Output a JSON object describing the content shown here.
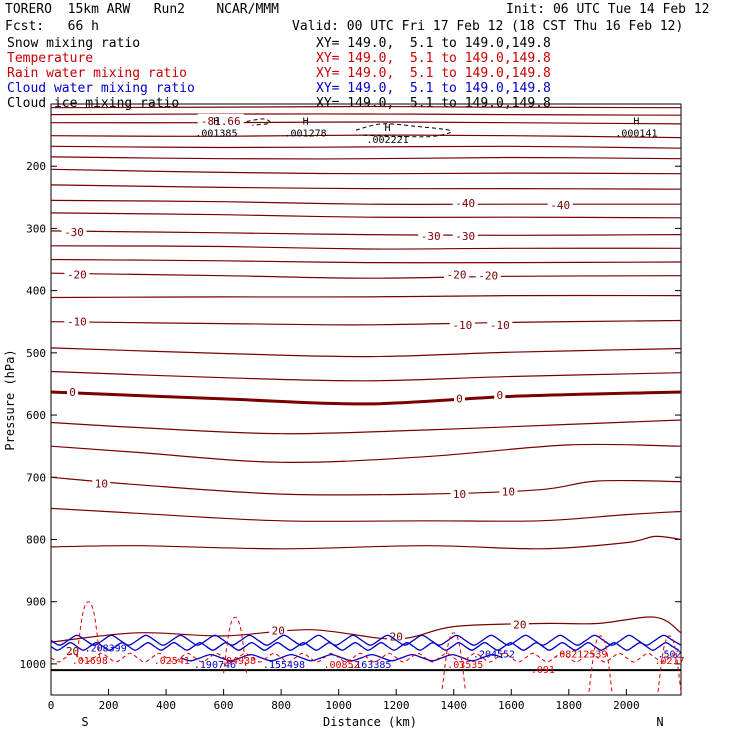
{
  "header": {
    "model": "TORERO  15km ARW   Run2    NCAR/MMM",
    "init": "Init: 06 UTC Tue 14 Feb 12",
    "fcst": "Fcst:   66 h",
    "valid": "Valid: 00 UTC Fri 17 Feb 12 (18 CST Thu 16 Feb 12)"
  },
  "fields": [
    {
      "name": "Snow mixing ratio",
      "xy": "XY= 149.0,  5.1 to 149.0,149.8",
      "color": "#000000"
    },
    {
      "name": "Temperature",
      "xy": "XY= 149.0,  5.1 to 149.0,149.8",
      "color": "#c80000"
    },
    {
      "name": "Rain water mixing ratio",
      "xy": "XY= 149.0,  5.1 to 149.0,149.8",
      "color": "#c80000"
    },
    {
      "name": "Cloud water mixing ratio",
      "xy": "XY= 149.0,  5.1 to 149.0,149.8",
      "color": "#0000c8"
    },
    {
      "name": "Cloud ice mixing ratio",
      "xy": "XY= 149.0,  5.1 to 149.0,149.8",
      "color": "#000000"
    }
  ],
  "chart_data": {
    "type": "line",
    "xlabel": "Distance (km)",
    "ylabel": "Pressure (hPa)",
    "xlim": [
      0,
      2190
    ],
    "ylim": [
      1050,
      100
    ],
    "x_ticks": [
      0,
      200,
      400,
      600,
      800,
      1000,
      1200,
      1400,
      1600,
      1800,
      2000
    ],
    "y_ticks": [
      200,
      300,
      400,
      500,
      600,
      700,
      800,
      900,
      1000
    ],
    "end_labels": {
      "left": "S",
      "right": "N"
    },
    "colors": {
      "temperature": "#7a0000",
      "cloud_water": "#0000c8",
      "rain": "#dc0000",
      "ice": "#000000"
    },
    "temperature_isotherms": [
      {
        "x": [
          0,
          600,
          1100,
          1500,
          2190
        ],
        "y": [
          106,
          105,
          104,
          105,
          106
        ]
      },
      {
        "x": [
          0,
          600,
          1100,
          1600,
          2190
        ],
        "y": [
          117,
          116,
          116,
          117,
          118
        ]
      },
      {
        "x": [
          0,
          600,
          1100,
          1600,
          2190
        ],
        "y": [
          130,
          130,
          129,
          130,
          132
        ]
      },
      {
        "x": [
          0,
          600,
          1100,
          1600,
          2190
        ],
        "y": [
          151,
          152,
          150,
          151,
          154
        ]
      },
      {
        "x": [
          0,
          600,
          1100,
          1600,
          2190
        ],
        "y": [
          168,
          170,
          169,
          168,
          171
        ]
      },
      {
        "x": [
          0,
          600,
          1100,
          1600,
          2190
        ],
        "y": [
          185,
          188,
          188,
          186,
          188
        ]
      },
      {
        "x": [
          0,
          600,
          1100,
          1600,
          2190
        ],
        "y": [
          205,
          210,
          212,
          211,
          212
        ]
      },
      {
        "x": [
          0,
          600,
          1100,
          1600,
          2190
        ],
        "y": [
          230,
          234,
          236,
          236,
          237
        ]
      },
      {
        "x": [
          0,
          600,
          1100,
          1600,
          2190
        ],
        "y": [
          255,
          257,
          261,
          261,
          261
        ]
      },
      {
        "x": [
          0,
          600,
          1100,
          1600,
          2190
        ],
        "y": [
          275,
          278,
          282,
          282,
          283
        ]
      },
      {
        "x": [
          0,
          600,
          1100,
          1600,
          2190
        ],
        "y": [
          304,
          307,
          310,
          311,
          310
        ]
      },
      {
        "x": [
          0,
          600,
          1100,
          1600,
          2190
        ],
        "y": [
          328,
          329,
          333,
          332,
          332
        ]
      },
      {
        "x": [
          0,
          600,
          1100,
          1600,
          2190
        ],
        "y": [
          350,
          352,
          355,
          355,
          354
        ]
      },
      {
        "x": [
          0,
          600,
          1100,
          1600,
          2190
        ],
        "y": [
          372,
          376,
          380,
          377,
          376
        ]
      },
      {
        "x": [
          0,
          600,
          1100,
          1600,
          2190
        ],
        "y": [
          411,
          410,
          410,
          408,
          408
        ]
      },
      {
        "x": [
          0,
          600,
          1100,
          1600,
          2190
        ],
        "y": [
          450,
          453,
          455,
          451,
          448
        ]
      },
      {
        "x": [
          0,
          600,
          1100,
          1600,
          2190
        ],
        "y": [
          492,
          501,
          506,
          499,
          493
        ]
      },
      {
        "x": [
          0,
          600,
          1100,
          1600,
          2190
        ],
        "y": [
          530,
          540,
          545,
          538,
          532
        ]
      },
      {
        "x": [
          0,
          600,
          1100,
          1600,
          2190
        ],
        "y": [
          563,
          574,
          582,
          570,
          563
        ],
        "bold": true
      },
      {
        "x": [
          0,
          300,
          800,
          1300,
          1800,
          2190
        ],
        "y": [
          612,
          620,
          630,
          624,
          615,
          608
        ]
      },
      {
        "x": [
          0,
          300,
          800,
          1300,
          1800,
          2190
        ],
        "y": [
          650,
          660,
          676,
          667,
          648,
          650
        ]
      },
      {
        "x": [
          0,
          300,
          800,
          1300,
          1700,
          1900,
          2190
        ],
        "y": [
          700,
          712,
          727,
          727,
          720,
          706,
          707
        ]
      },
      {
        "x": [
          0,
          300,
          800,
          1300,
          1700,
          2000,
          2190
        ],
        "y": [
          750,
          758,
          770,
          770,
          770,
          760,
          755
        ]
      },
      {
        "x": [
          0,
          300,
          800,
          1300,
          1700,
          2000,
          2100,
          2190
        ],
        "y": [
          812,
          810,
          815,
          810,
          815,
          805,
          795,
          800
        ]
      },
      {
        "x": [
          0,
          300,
          600,
          900,
          1200,
          1400,
          1700,
          1900,
          2100,
          2190
        ],
        "y": [
          965,
          950,
          955,
          945,
          960,
          940,
          935,
          935,
          925,
          950
        ]
      }
    ],
    "temperature_labels": [
      {
        "text": "-81.66",
        "x": 590,
        "y": 127
      },
      {
        "text": "-40",
        "x": 1440,
        "y": 259
      },
      {
        "text": "-40",
        "x": 1770,
        "y": 262
      },
      {
        "text": "-30",
        "x": 80,
        "y": 306
      },
      {
        "text": "-30",
        "x": 1320,
        "y": 312
      },
      {
        "text": "-30",
        "x": 1440,
        "y": 312
      },
      {
        "text": "-20",
        "x": 90,
        "y": 374
      },
      {
        "text": "-20",
        "x": 1410,
        "y": 374
      },
      {
        "text": "-20",
        "x": 1520,
        "y": 376
      },
      {
        "text": "-10",
        "x": 90,
        "y": 450
      },
      {
        "text": "-10",
        "x": 1430,
        "y": 455
      },
      {
        "text": "-10",
        "x": 1560,
        "y": 455
      },
      {
        "text": "0",
        "x": 75,
        "y": 563
      },
      {
        "text": "0",
        "x": 1420,
        "y": 573
      },
      {
        "text": "0",
        "x": 1560,
        "y": 568
      },
      {
        "text": "10",
        "x": 175,
        "y": 710
      },
      {
        "text": "10",
        "x": 1420,
        "y": 727
      },
      {
        "text": "10",
        "x": 1590,
        "y": 723
      },
      {
        "text": "20",
        "x": 790,
        "y": 946
      },
      {
        "text": "20",
        "x": 1200,
        "y": 956
      },
      {
        "text": "20",
        "x": 1630,
        "y": 937
      },
      {
        "text": "20",
        "x": 75,
        "y": 979
      }
    ],
    "ice_labels": [
      {
        "text": "H",
        "x": 575,
        "y": 133,
        "value": ".001385"
      },
      {
        "text": "H",
        "x": 885,
        "y": 133,
        "value": ".001278"
      },
      {
        "text": "H",
        "x": 1170,
        "y": 143,
        "value": ".002221"
      },
      {
        "text": "H",
        "x": 2035,
        "y": 133,
        "value": ".000141"
      }
    ],
    "cloud_labels": [
      {
        "text": ".208399",
        "x": 190,
        "y": 980
      },
      {
        "text": ".190746",
        "x": 570,
        "y": 1007
      },
      {
        "text": ".155498",
        "x": 810,
        "y": 1007
      },
      {
        "text": ".163385",
        "x": 1110,
        "y": 1007
      },
      {
        "text": ".204552",
        "x": 1540,
        "y": 990
      },
      {
        "text": ".502",
        "x": 2150,
        "y": 990
      }
    ],
    "rain_labels": [
      {
        "text": ".01698",
        "x": 135,
        "y": 1000
      },
      {
        "text": ".02541",
        "x": 420,
        "y": 1000
      },
      {
        "text": ".04938",
        "x": 650,
        "y": 1000
      },
      {
        "text": ".00852",
        "x": 1010,
        "y": 1007
      },
      {
        "text": ".03535",
        "x": 1440,
        "y": 1007
      },
      {
        "text": ".08212539",
        "x": 1840,
        "y": 990
      },
      {
        "text": ".0217",
        "x": 2150,
        "y": 1000
      },
      {
        "text": ".091",
        "x": 1710,
        "y": 1015
      }
    ]
  }
}
